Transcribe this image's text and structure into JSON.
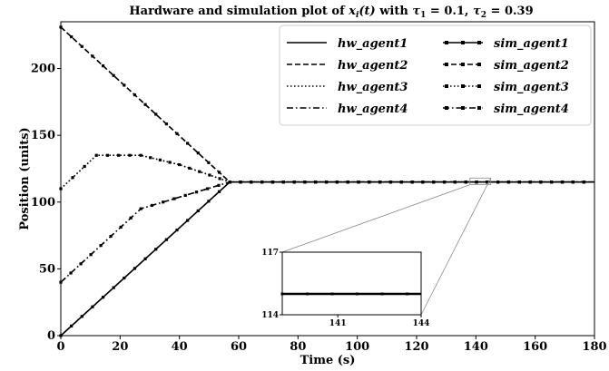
{
  "chart_data": {
    "type": "line",
    "title": "Hardware and simulation plot of x_i(t) with τ₁ = 0.1, τ₂ = 0.39",
    "title_parts": {
      "prefix": "Hardware and simulation plot of ",
      "var": "x",
      "var_sub": "i",
      "var_arg": "(t)",
      "mid": " with ",
      "tau1_sym": "τ",
      "tau1_sub": "1",
      "tau1_val": " = 0.1, ",
      "tau2_sym": "τ",
      "tau2_sub": "2",
      "tau2_val": " = 0.39"
    },
    "xlabel": "Time (s)",
    "ylabel": "Position (units)",
    "xlim": [
      0,
      180
    ],
    "ylim": [
      0,
      235
    ],
    "xticks": [
      0,
      20,
      40,
      60,
      80,
      100,
      120,
      140,
      160,
      180
    ],
    "yticks": [
      0,
      50,
      100,
      150,
      200
    ],
    "grid": false,
    "legend_position": "top-right",
    "legend_columns": 2,
    "series": [
      {
        "name": "hw_agent1",
        "style": "solid",
        "x": [
          0,
          57,
          180
        ],
        "y": [
          0,
          115,
          115
        ]
      },
      {
        "name": "hw_agent2",
        "style": "dashed",
        "x": [
          0,
          57,
          180
        ],
        "y": [
          231,
          115,
          115
        ]
      },
      {
        "name": "hw_agent3",
        "style": "dotted",
        "x": [
          0,
          12,
          27,
          40,
          57,
          180
        ],
        "y": [
          110,
          135,
          135,
          128,
          115,
          115
        ]
      },
      {
        "name": "hw_agent4",
        "style": "dashdot",
        "x": [
          0,
          27,
          42,
          57,
          180
        ],
        "y": [
          40,
          95,
          105,
          115,
          115
        ]
      },
      {
        "name": "sim_agent1",
        "style": "solid-marker",
        "x": [
          0,
          57,
          180
        ],
        "y": [
          0,
          115,
          115
        ]
      },
      {
        "name": "sim_agent2",
        "style": "dashed-marker",
        "x": [
          0,
          57,
          180
        ],
        "y": [
          231,
          115,
          115
        ]
      },
      {
        "name": "sim_agent3",
        "style": "dotted-marker",
        "x": [
          0,
          12,
          27,
          40,
          57,
          180
        ],
        "y": [
          110,
          135,
          135,
          128,
          115,
          115
        ]
      },
      {
        "name": "sim_agent4",
        "style": "dashdot-marker",
        "x": [
          0,
          27,
          42,
          57,
          180
        ],
        "y": [
          40,
          95,
          105,
          115,
          115
        ]
      }
    ],
    "inset": {
      "xlim": [
        139,
        144
      ],
      "ylim": [
        114,
        117
      ],
      "xticks": [
        141,
        144
      ],
      "yticks": [
        114,
        117
      ],
      "zoom_region": {
        "x": [
          138,
          145
        ],
        "y": [
          113,
          118
        ]
      }
    }
  }
}
